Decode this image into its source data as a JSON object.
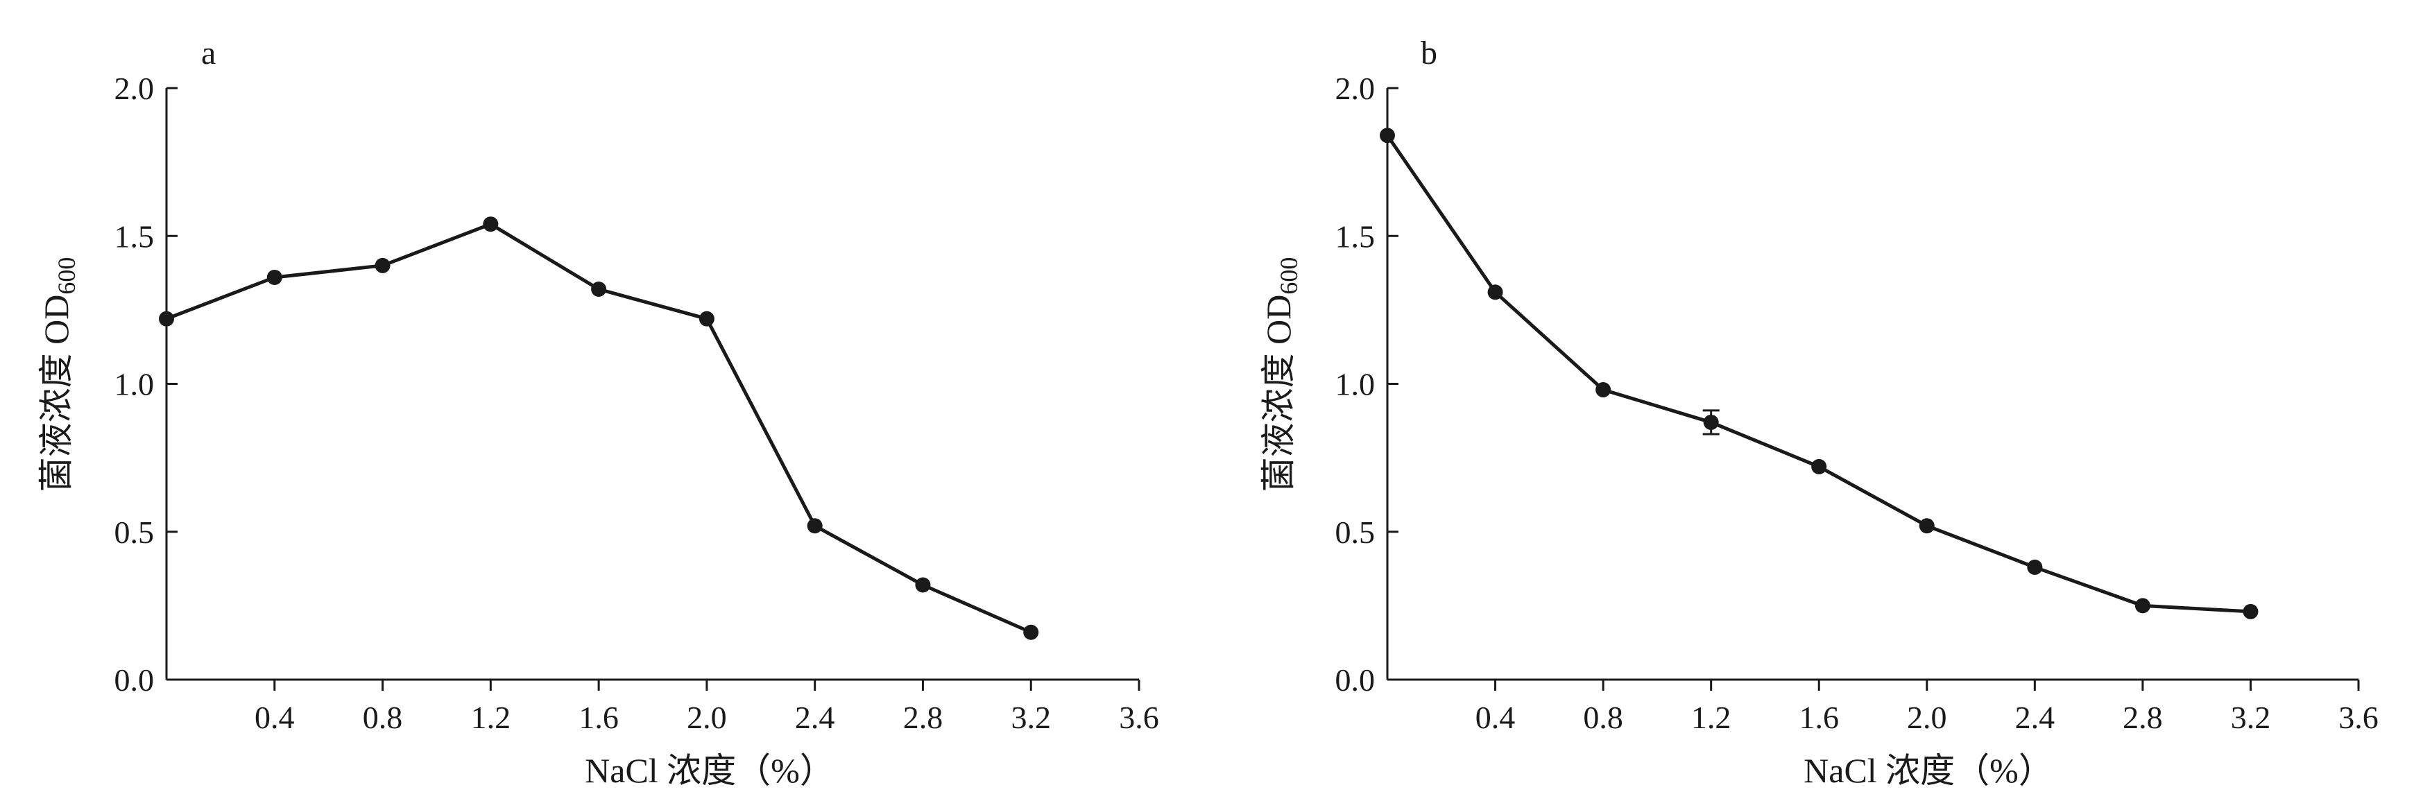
{
  "chart_data": [
    {
      "type": "line",
      "panel_label": "a",
      "xlabel": "NaCl 浓度（%）",
      "ylabel": "菌液浓度 OD",
      "ylabel_sub": "600",
      "xlim": [
        0,
        3.6
      ],
      "ylim": [
        0,
        2.0
      ],
      "xticks": [
        "0.4",
        "0.8",
        "1.2",
        "1.6",
        "2.0",
        "2.4",
        "2.8",
        "3.2",
        "3.6"
      ],
      "yticks": [
        "0.0",
        "0.5",
        "1.0",
        "1.5",
        "2.0"
      ],
      "grid": false,
      "legend": "none",
      "series": [
        {
          "x": [
            0,
            0.4,
            0.8,
            1.2,
            1.6,
            2.0,
            2.4,
            2.8,
            3.2
          ],
          "y": [
            1.22,
            1.36,
            1.4,
            1.54,
            1.32,
            1.22,
            0.52,
            0.32,
            0.16
          ],
          "err": [
            0,
            0,
            0,
            0,
            0,
            0,
            0,
            0,
            0
          ]
        }
      ]
    },
    {
      "type": "line",
      "panel_label": "b",
      "xlabel": "NaCl 浓度（%）",
      "ylabel": "菌液浓度 OD",
      "ylabel_sub": "600",
      "xlim": [
        0,
        3.6
      ],
      "ylim": [
        0,
        2.0
      ],
      "xticks": [
        "0.4",
        "0.8",
        "1.2",
        "1.6",
        "2.0",
        "2.4",
        "2.8",
        "3.2",
        "3.6"
      ],
      "yticks": [
        "0.0",
        "0.5",
        "1.0",
        "1.5",
        "2.0"
      ],
      "grid": false,
      "legend": "none",
      "series": [
        {
          "x": [
            0,
            0.4,
            0.8,
            1.2,
            1.6,
            2.0,
            2.4,
            2.8,
            3.2
          ],
          "y": [
            1.84,
            1.31,
            0.98,
            0.87,
            0.72,
            0.52,
            0.38,
            0.25,
            0.23
          ],
          "err": [
            0,
            0,
            0,
            0.04,
            0,
            0,
            0,
            0,
            0
          ]
        }
      ]
    }
  ]
}
